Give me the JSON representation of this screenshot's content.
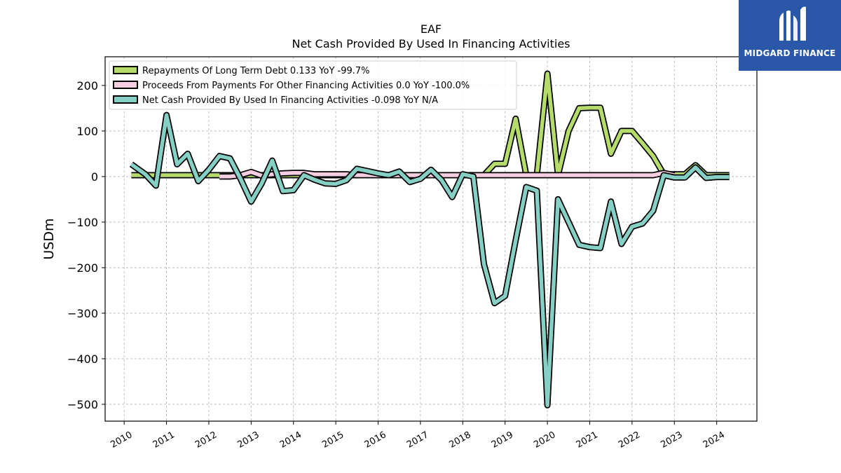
{
  "brand": {
    "name": "MIDGARD FINANCE",
    "logo_icon": "midgard-logo-icon",
    "background_color": "#2a57a8"
  },
  "chart_data": {
    "type": "line",
    "title": "EAF",
    "subtitle": "Net Cash Provided By Used In Financing Activities",
    "xlabel": "",
    "ylabel": "USDm",
    "xlim": [
      2009.55,
      2024.95
    ],
    "ylim": [
      -537,
      263
    ],
    "grid": true,
    "legend_position": "upper-left",
    "x_ticks": [
      2010,
      2011,
      2012,
      2013,
      2014,
      2015,
      2016,
      2017,
      2018,
      2019,
      2020,
      2021,
      2022,
      2023,
      2024
    ],
    "x_tick_labels": [
      "2010",
      "2011",
      "2012",
      "2013",
      "2014",
      "2015",
      "2016",
      "2017",
      "2018",
      "2019",
      "2020",
      "2021",
      "2022",
      "2023",
      "2024"
    ],
    "y_ticks": [
      -500,
      -400,
      -300,
      -200,
      -100,
      0,
      100,
      200
    ],
    "y_tick_labels": [
      "−500",
      "−400",
      "−300",
      "−200",
      "−100",
      "0",
      "100",
      "200"
    ],
    "series": [
      {
        "name": "Repayments Of Long Term Debt  0.133 YoY -99.7%",
        "color": "#b5dc6a",
        "x": [
          2010.17,
          2012.25,
          2017.75,
          2018.5,
          2018.75,
          2019.0,
          2019.25,
          2019.5,
          2019.75,
          2020.0,
          2020.25,
          2020.5,
          2020.75,
          2021.0,
          2021.25,
          2021.5,
          2021.75,
          2022.0,
          2022.25,
          2022.5,
          2022.75,
          2023.0,
          2023.25,
          2023.5,
          2023.75,
          2024.0,
          2024.3
        ],
        "y": [
          3,
          3,
          3,
          3,
          28,
          28,
          127,
          3,
          3,
          226,
          3,
          100,
          150,
          151,
          151,
          50,
          100,
          100,
          73,
          45,
          5,
          5,
          5,
          25,
          3,
          3,
          3
        ]
      },
      {
        "name": "Proceeds From Payments For Other Financing Activities  0.0 YoY -100.0%",
        "color": "#f7cde2",
        "x": [
          2012.25,
          2012.5,
          2012.75,
          2013.0,
          2013.25,
          2013.5,
          2013.75,
          2014.0,
          2014.25,
          2014.5,
          2014.75,
          2015.0,
          2015.25,
          2015.5,
          2015.75,
          2016.0,
          2016.5,
          2017.0,
          2017.5,
          2018.0,
          2018.5,
          2019.0,
          2019.5,
          2020.0,
          2020.5,
          2021.0,
          2021.5,
          2022.0,
          2022.5,
          2022.75,
          2023.0
        ],
        "y": [
          0,
          0,
          3,
          10,
          2,
          5,
          7,
          8,
          8,
          5,
          5,
          5,
          5,
          3,
          3,
          3,
          3,
          3,
          3,
          3,
          3,
          3,
          3,
          3,
          3,
          3,
          3,
          3,
          3,
          8,
          3
        ]
      },
      {
        "name": "Net Cash Provided By Used In Financing Activities  -0.098 YoY N/A",
        "color": "#86cfc4",
        "x": [
          2010.17,
          2010.5,
          2010.75,
          2011.0,
          2011.25,
          2011.5,
          2011.75,
          2012.0,
          2012.25,
          2012.5,
          2012.75,
          2013.0,
          2013.25,
          2013.5,
          2013.75,
          2014.0,
          2014.25,
          2014.5,
          2014.75,
          2015.0,
          2015.25,
          2015.5,
          2015.75,
          2016.0,
          2016.25,
          2016.5,
          2016.75,
          2017.0,
          2017.25,
          2017.5,
          2017.75,
          2018.0,
          2018.25,
          2018.5,
          2018.75,
          2019.0,
          2019.25,
          2019.5,
          2019.75,
          2020.0,
          2020.25,
          2020.5,
          2020.75,
          2021.0,
          2021.25,
          2021.5,
          2021.75,
          2022.0,
          2022.25,
          2022.5,
          2022.75,
          2023.0,
          2023.25,
          2023.5,
          2023.75,
          2024.0,
          2024.3
        ],
        "y": [
          27,
          5,
          -20,
          135,
          27,
          50,
          -10,
          15,
          45,
          40,
          -5,
          -55,
          -15,
          35,
          -32,
          -30,
          3,
          -7,
          -15,
          -16,
          -8,
          17,
          12,
          7,
          3,
          11,
          -12,
          -5,
          15,
          -8,
          -45,
          5,
          0,
          -192,
          -278,
          -262,
          -140,
          -23,
          -31,
          -502,
          -50,
          -100,
          -150,
          -155,
          -157,
          -55,
          -148,
          -110,
          -103,
          -75,
          3,
          -2,
          -2,
          20,
          -3,
          -1,
          -1
        ]
      }
    ]
  }
}
